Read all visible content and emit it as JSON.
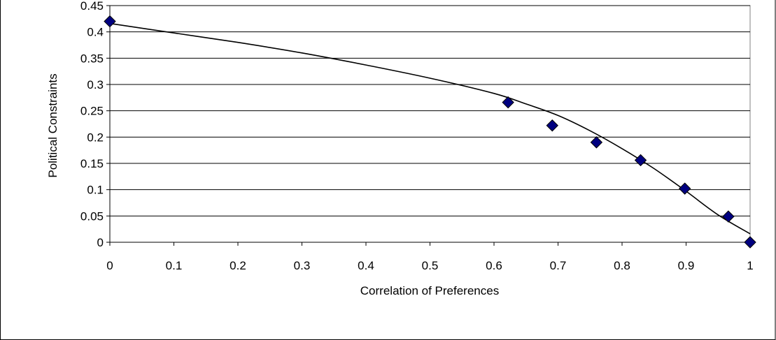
{
  "chart_data": {
    "type": "scatter",
    "title": "",
    "xlabel": "Correlation of Preferences",
    "ylabel": "Political Constraints",
    "xlim": [
      0,
      1
    ],
    "ylim": [
      0,
      0.45
    ],
    "x_ticks": [
      "0",
      "0.1",
      "0.2",
      "0.3",
      "0.4",
      "0.5",
      "0.6",
      "0.7",
      "0.8",
      "0.9",
      "1"
    ],
    "y_ticks": [
      "0",
      "0.05",
      "0.1",
      "0.15",
      "0.2",
      "0.25",
      "0.3",
      "0.35",
      "0.4",
      "0.45"
    ],
    "grid": "horizontal",
    "legend": "none",
    "colors": {
      "marker": "#000080",
      "trendline": "#000000",
      "gridline": "#000000"
    },
    "series": [
      {
        "marker": "diamond",
        "x": [
          0.0,
          0.622,
          0.691,
          0.76,
          0.829,
          0.898,
          0.966,
          1.0
        ],
        "y": [
          0.42,
          0.266,
          0.222,
          0.19,
          0.156,
          0.102,
          0.049,
          0.0
        ]
      }
    ],
    "trendline": {
      "type": "curve",
      "x": [
        0.0,
        0.1,
        0.2,
        0.3,
        0.4,
        0.5,
        0.6,
        0.65,
        0.7,
        0.75,
        0.8,
        0.85,
        0.9,
        0.95,
        1.0
      ],
      "y": [
        0.416,
        0.398,
        0.38,
        0.36,
        0.337,
        0.312,
        0.283,
        0.263,
        0.241,
        0.212,
        0.178,
        0.14,
        0.097,
        0.052,
        0.016
      ]
    }
  }
}
